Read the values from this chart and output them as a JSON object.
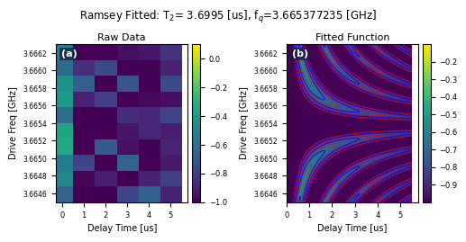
{
  "title": "Ramsey Fitted: T$_2$= 3.6995 [us], f$_q$=3.665377235 [GHz]",
  "title_fontsize": 8.5,
  "left_title": "Raw Data",
  "right_title": "Fitted Function",
  "xlabel": "Delay Time [us]",
  "ylabel": "Drive Freq [GHz]",
  "label_a": "(a)",
  "label_b": "(b)",
  "freq_min": 3.6645,
  "freq_max": 3.6663,
  "time_min": 0.0,
  "time_max": 5.5,
  "f_q": 3.665377235,
  "T2": 3.6995,
  "cmap": "viridis",
  "colorbar_left_ticks": [
    0.0,
    -0.2,
    -0.4,
    -0.6,
    -0.8,
    -1.0
  ],
  "colorbar_right_ticks": [
    -0.2,
    -0.3,
    -0.4,
    -0.5,
    -0.6,
    -0.7,
    -0.8,
    -0.9
  ],
  "n_freq": 10,
  "n_time": 6,
  "ytick_labels": [
    "3.6646",
    "3.6648",
    "3.6650",
    "3.6652",
    "3.6654",
    "3.6656",
    "3.6658",
    "3.6660",
    "3.6662"
  ],
  "ytick_vals": [
    3.6646,
    3.6648,
    3.665,
    3.6652,
    3.6654,
    3.6656,
    3.6658,
    3.666,
    3.6662
  ]
}
